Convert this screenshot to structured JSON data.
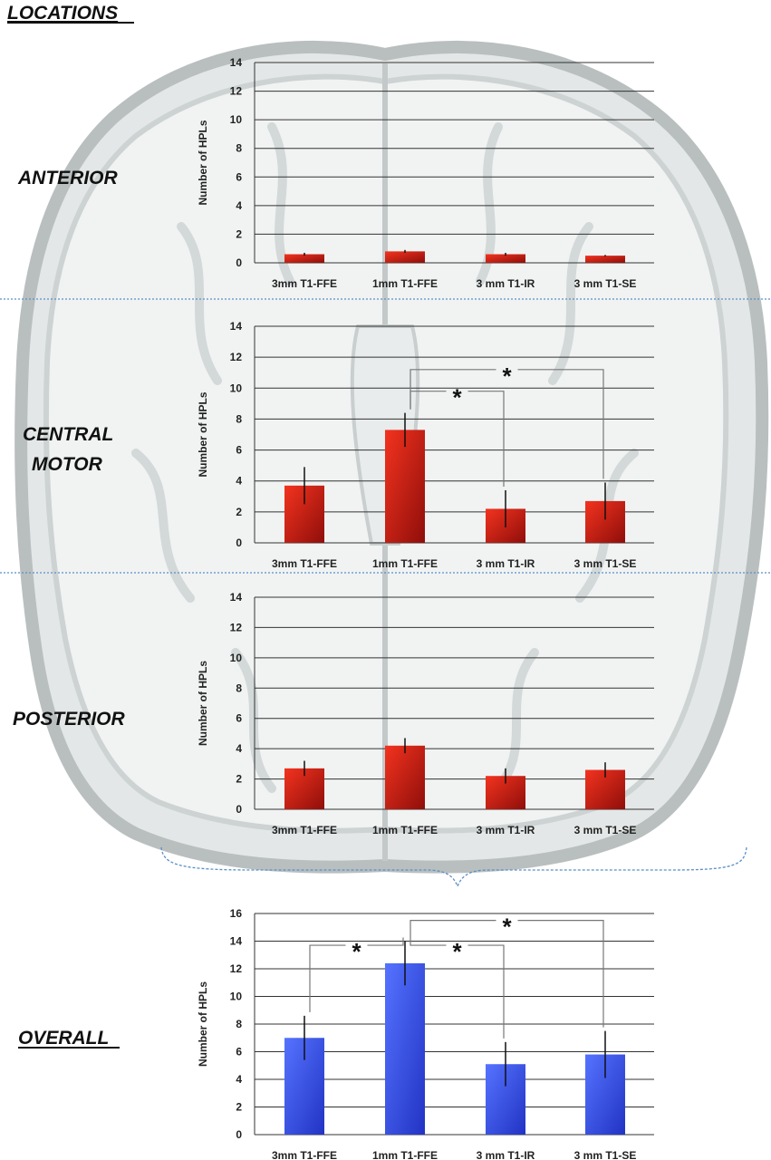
{
  "page_title": "LOCATIONS",
  "colors": {
    "red_bar": "#e8251b",
    "red_bar_dark": "#8f0e0a",
    "blue_bar": "#3b5bf5",
    "blue_bar_dark": "#2233c4"
  },
  "chart_data": [
    {
      "type": "bar",
      "id": "anterior",
      "section_label": [
        "ANTERIOR"
      ],
      "categories": [
        "3mm T1-FFE",
        "1mm T1-FFE",
        "3 mm T1-IR",
        "3 mm T1-SE"
      ],
      "values": [
        0.6,
        0.8,
        0.6,
        0.5
      ],
      "errors": [
        0.1,
        0.1,
        0.1,
        0.05
      ],
      "ylabel": "Number of HPLs",
      "ylim": [
        0,
        14
      ],
      "yticks": [
        0,
        2,
        4,
        6,
        8,
        10,
        12,
        14
      ],
      "grid": true,
      "color": "red",
      "significance": []
    },
    {
      "type": "bar",
      "id": "central-motor",
      "section_label": [
        "CENTRAL",
        "MOTOR"
      ],
      "categories": [
        "3mm T1-FFE",
        "1mm T1-FFE",
        "3 mm T1-IR",
        "3 mm T1-SE"
      ],
      "values": [
        3.7,
        7.3,
        2.2,
        2.7
      ],
      "errors": [
        1.2,
        1.1,
        1.2,
        1.2
      ],
      "ylabel": "Number of HPLs",
      "ylim": [
        0,
        14
      ],
      "yticks": [
        0,
        2,
        4,
        6,
        8,
        10,
        12,
        14
      ],
      "grid": true,
      "color": "red",
      "significance": [
        {
          "from": 1,
          "to": 2,
          "label": "*",
          "level": 9.8
        },
        {
          "from": 1,
          "to": 3,
          "label": "*",
          "level": 11.2
        }
      ]
    },
    {
      "type": "bar",
      "id": "posterior",
      "section_label": [
        "POSTERIOR"
      ],
      "categories": [
        "3mm T1-FFE",
        "1mm T1-FFE",
        "3 mm T1-IR",
        "3 mm T1-SE"
      ],
      "values": [
        2.7,
        4.2,
        2.2,
        2.6
      ],
      "errors": [
        0.5,
        0.5,
        0.5,
        0.5
      ],
      "ylabel": "Number of HPLs",
      "ylim": [
        0,
        14
      ],
      "yticks": [
        0,
        2,
        4,
        6,
        8,
        10,
        12,
        14
      ],
      "grid": true,
      "color": "red",
      "significance": []
    },
    {
      "type": "bar",
      "id": "overall",
      "section_label": [
        "OVERALL"
      ],
      "categories": [
        "3mm T1-FFE",
        "1mm T1-FFE",
        "3 mm T1-IR",
        "3 mm T1-SE"
      ],
      "values": [
        7.0,
        12.4,
        5.1,
        5.8
      ],
      "errors": [
        1.6,
        1.6,
        1.6,
        1.7
      ],
      "ylabel": "Number of HPLs",
      "ylim": [
        0,
        16
      ],
      "yticks": [
        0,
        2,
        4,
        6,
        8,
        10,
        12,
        14,
        16
      ],
      "grid": true,
      "color": "blue",
      "significance": [
        {
          "from": 0,
          "to": 1,
          "label": "*",
          "level": 13.7
        },
        {
          "from": 1,
          "to": 2,
          "label": "*",
          "level": 13.7
        },
        {
          "from": 1,
          "to": 3,
          "label": "*",
          "level": 15.5
        }
      ]
    }
  ]
}
